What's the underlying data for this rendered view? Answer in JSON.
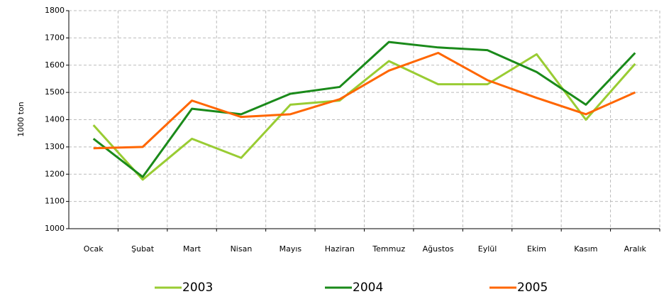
{
  "chart_data": {
    "type": "line",
    "y_label": "1000 ton",
    "categories": [
      "Ocak",
      "Şubat",
      "Mart",
      "Nisan",
      "Mayıs",
      "Haziran",
      "Temmuz",
      "Ağustos",
      "Eylül",
      "Ekim",
      "Kasım",
      "Aralık"
    ],
    "series": [
      {
        "name": "2003",
        "color": "#99cc33",
        "values": [
          1380,
          1180,
          1330,
          1260,
          1455,
          1470,
          1615,
          1530,
          1530,
          1640,
          1400,
          1605
        ]
      },
      {
        "name": "2004",
        "color": "#1a8a1a",
        "values": [
          1330,
          1190,
          1440,
          1420,
          1495,
          1520,
          1685,
          1665,
          1655,
          1575,
          1455,
          1645
        ]
      },
      {
        "name": "2005",
        "color": "#ff6600",
        "values": [
          1295,
          1300,
          1470,
          1410,
          1420,
          1475,
          1580,
          1645,
          1545,
          1480,
          1420,
          1500
        ]
      }
    ],
    "ylim": [
      1000,
      1800
    ],
    "yticks": [
      1000,
      1100,
      1200,
      1300,
      1400,
      1500,
      1600,
      1700,
      1800
    ],
    "grid": true,
    "legend": "bottom"
  }
}
